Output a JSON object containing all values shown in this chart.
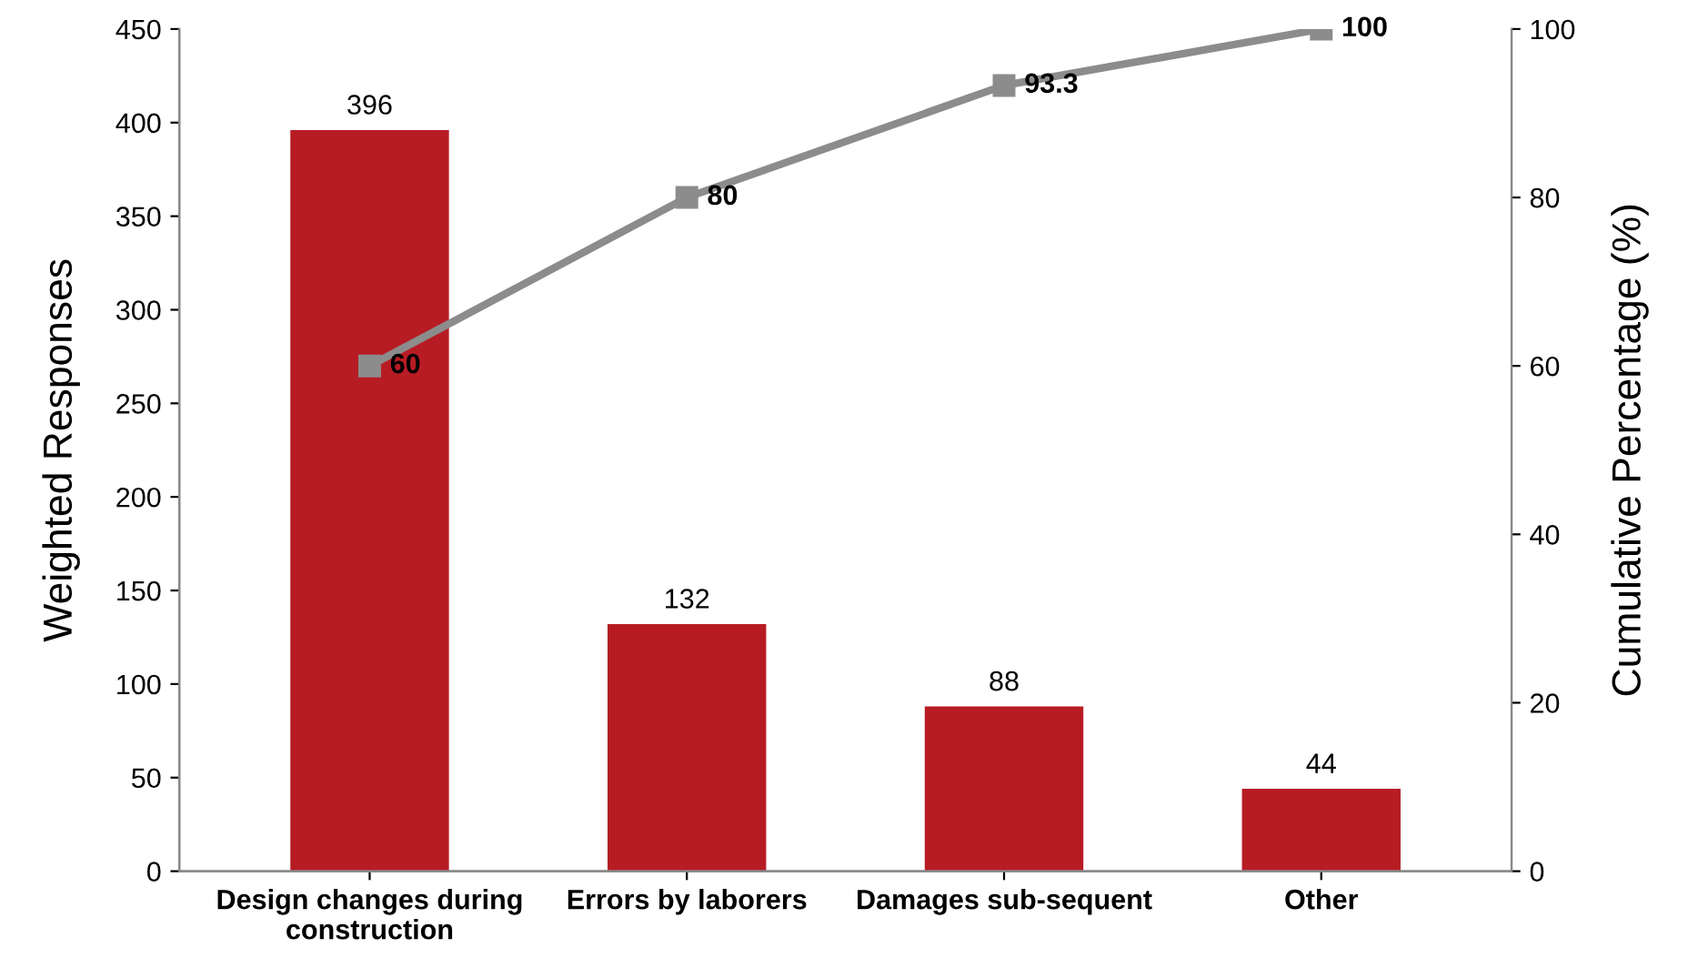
{
  "chart_data": {
    "type": "bar",
    "categories": [
      "Design changes during construction",
      "Errors by laborers",
      "Damages sub-sequent",
      "Other"
    ],
    "series": [
      {
        "color": "#b71c24",
        "values": [
          396,
          132,
          88,
          44
        ]
      },
      {
        "type": "line",
        "axis": "y2",
        "color": "#8c8c8c",
        "marker": "square",
        "values": [
          60,
          80,
          93.3,
          100
        ]
      }
    ],
    "ylabel": "Weighted Responses",
    "y2label": "Cumulative Percentage (%)",
    "ylim": [
      0,
      450
    ],
    "yticks": [
      0,
      50,
      100,
      150,
      200,
      250,
      300,
      350,
      400,
      450
    ],
    "y2lim": [
      0,
      100
    ],
    "y2ticks": [
      0,
      20,
      40,
      60,
      80,
      100
    ],
    "data_labels": true,
    "grid": false,
    "legend": false
  }
}
